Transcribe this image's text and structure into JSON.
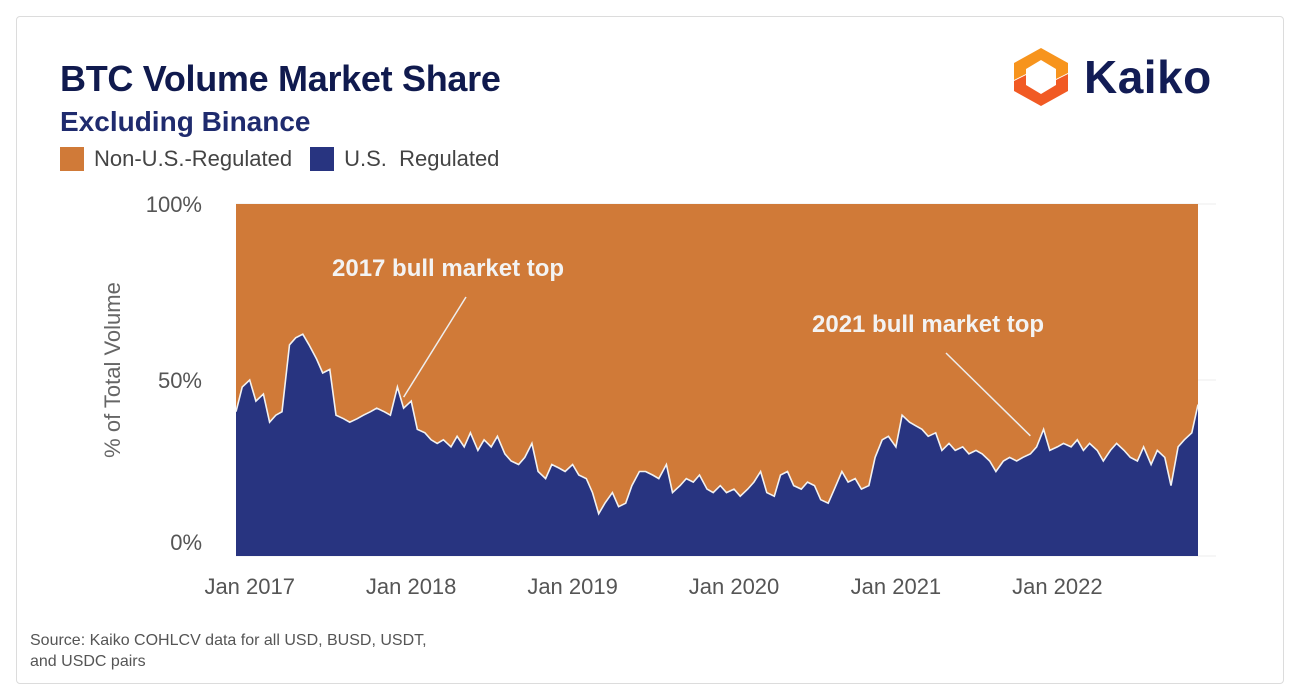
{
  "header": {
    "title": "BTC Volume Market Share",
    "subtitle": "Excluding Binance"
  },
  "brand": {
    "logo_text": "Kaiko",
    "logo_colors": [
      "#f7941d",
      "#f15a24"
    ]
  },
  "footer": {
    "source": "Source: Kaiko COHLCV data for all USD, BUSD, USDT, and USDC pairs"
  },
  "colors": {
    "non_us": "#d07a38",
    "us": "#283480"
  },
  "chart_data": {
    "type": "area",
    "stacked": true,
    "title": "BTC Volume Market Share",
    "subtitle": "Excluding Binance",
    "ylabel": "% of Total Volume",
    "xlabel": "",
    "ylim": [
      0,
      100
    ],
    "yticks": [
      "0%",
      "50%",
      "100%"
    ],
    "xticks": [
      "Jan 2017",
      "Jan 2018",
      "Jan 2019",
      "Jan 2020",
      "Jan 2021",
      "Jan 2022"
    ],
    "xrange": [
      "2016-12-01",
      "2022-11-15"
    ],
    "legend": {
      "placement": "top-left",
      "entries": [
        "Non-U.S.-Regulated",
        "U.S.  Regulated"
      ]
    },
    "grid": true,
    "series": [
      {
        "name": "U.S.  Regulated",
        "color": "#283480",
        "points": [
          [
            "2016-12-01",
            41
          ],
          [
            "2016-12-15",
            48
          ],
          [
            "2017-01-01",
            50
          ],
          [
            "2017-01-15",
            44
          ],
          [
            "2017-02-01",
            46
          ],
          [
            "2017-02-15",
            38
          ],
          [
            "2017-03-01",
            40
          ],
          [
            "2017-03-15",
            41
          ],
          [
            "2017-04-01",
            60
          ],
          [
            "2017-04-15",
            62
          ],
          [
            "2017-05-01",
            63
          ],
          [
            "2017-05-15",
            60
          ],
          [
            "2017-06-01",
            56
          ],
          [
            "2017-06-15",
            52
          ],
          [
            "2017-07-01",
            53
          ],
          [
            "2017-07-15",
            40
          ],
          [
            "2017-08-01",
            39
          ],
          [
            "2017-08-15",
            38
          ],
          [
            "2017-09-01",
            39
          ],
          [
            "2017-09-15",
            40
          ],
          [
            "2017-10-01",
            41
          ],
          [
            "2017-10-15",
            42
          ],
          [
            "2017-11-01",
            41
          ],
          [
            "2017-11-15",
            40
          ],
          [
            "2017-12-01",
            48
          ],
          [
            "2017-12-15",
            42
          ],
          [
            "2018-01-01",
            44
          ],
          [
            "2018-01-15",
            36
          ],
          [
            "2018-02-01",
            35
          ],
          [
            "2018-02-15",
            33
          ],
          [
            "2018-03-01",
            32
          ],
          [
            "2018-03-15",
            33
          ],
          [
            "2018-04-01",
            31
          ],
          [
            "2018-04-15",
            34
          ],
          [
            "2018-05-01",
            31
          ],
          [
            "2018-05-15",
            35
          ],
          [
            "2018-06-01",
            30
          ],
          [
            "2018-06-15",
            33
          ],
          [
            "2018-07-01",
            31
          ],
          [
            "2018-07-15",
            34
          ],
          [
            "2018-08-01",
            29
          ],
          [
            "2018-08-15",
            27
          ],
          [
            "2018-09-01",
            26
          ],
          [
            "2018-09-15",
            28
          ],
          [
            "2018-10-01",
            32
          ],
          [
            "2018-10-15",
            24
          ],
          [
            "2018-11-01",
            22
          ],
          [
            "2018-11-15",
            26
          ],
          [
            "2018-12-01",
            25
          ],
          [
            "2018-12-15",
            24
          ],
          [
            "2019-01-01",
            26
          ],
          [
            "2019-01-15",
            23
          ],
          [
            "2019-02-01",
            22
          ],
          [
            "2019-02-15",
            18
          ],
          [
            "2019-03-01",
            12
          ],
          [
            "2019-03-15",
            15
          ],
          [
            "2019-04-01",
            18
          ],
          [
            "2019-04-15",
            14
          ],
          [
            "2019-05-01",
            15
          ],
          [
            "2019-05-15",
            20
          ],
          [
            "2019-06-01",
            24
          ],
          [
            "2019-06-15",
            24
          ],
          [
            "2019-07-01",
            23
          ],
          [
            "2019-07-15",
            22
          ],
          [
            "2019-08-01",
            26
          ],
          [
            "2019-08-15",
            18
          ],
          [
            "2019-09-01",
            20
          ],
          [
            "2019-09-15",
            22
          ],
          [
            "2019-10-01",
            21
          ],
          [
            "2019-10-15",
            23
          ],
          [
            "2019-11-01",
            19
          ],
          [
            "2019-11-15",
            18
          ],
          [
            "2019-12-01",
            20
          ],
          [
            "2019-12-15",
            18
          ],
          [
            "2020-01-01",
            19
          ],
          [
            "2020-01-15",
            17
          ],
          [
            "2020-02-01",
            19
          ],
          [
            "2020-02-15",
            21
          ],
          [
            "2020-03-01",
            24
          ],
          [
            "2020-03-15",
            18
          ],
          [
            "2020-04-01",
            17
          ],
          [
            "2020-04-15",
            23
          ],
          [
            "2020-05-01",
            24
          ],
          [
            "2020-05-15",
            20
          ],
          [
            "2020-06-01",
            19
          ],
          [
            "2020-06-15",
            21
          ],
          [
            "2020-07-01",
            20
          ],
          [
            "2020-07-15",
            16
          ],
          [
            "2020-08-01",
            15
          ],
          [
            "2020-08-15",
            19
          ],
          [
            "2020-09-01",
            24
          ],
          [
            "2020-09-15",
            21
          ],
          [
            "2020-10-01",
            22
          ],
          [
            "2020-10-15",
            19
          ],
          [
            "2020-11-01",
            20
          ],
          [
            "2020-11-15",
            28
          ],
          [
            "2020-12-01",
            33
          ],
          [
            "2020-12-15",
            34
          ],
          [
            "2021-01-01",
            31
          ],
          [
            "2021-01-15",
            40
          ],
          [
            "2021-02-01",
            38
          ],
          [
            "2021-02-15",
            37
          ],
          [
            "2021-03-01",
            36
          ],
          [
            "2021-03-15",
            34
          ],
          [
            "2021-04-01",
            35
          ],
          [
            "2021-04-15",
            30
          ],
          [
            "2021-05-01",
            32
          ],
          [
            "2021-05-15",
            30
          ],
          [
            "2021-06-01",
            31
          ],
          [
            "2021-06-15",
            29
          ],
          [
            "2021-07-01",
            30
          ],
          [
            "2021-07-15",
            29
          ],
          [
            "2021-08-01",
            27
          ],
          [
            "2021-08-15",
            24
          ],
          [
            "2021-09-01",
            27
          ],
          [
            "2021-09-15",
            28
          ],
          [
            "2021-10-01",
            27
          ],
          [
            "2021-10-15",
            28
          ],
          [
            "2021-11-01",
            29
          ],
          [
            "2021-11-15",
            31
          ],
          [
            "2021-12-01",
            36
          ],
          [
            "2021-12-15",
            30
          ],
          [
            "2022-01-01",
            31
          ],
          [
            "2022-01-15",
            32
          ],
          [
            "2022-02-01",
            31
          ],
          [
            "2022-02-15",
            33
          ],
          [
            "2022-03-01",
            30
          ],
          [
            "2022-03-15",
            32
          ],
          [
            "2022-04-01",
            30
          ],
          [
            "2022-04-15",
            27
          ],
          [
            "2022-05-01",
            30
          ],
          [
            "2022-05-15",
            32
          ],
          [
            "2022-06-01",
            30
          ],
          [
            "2022-06-15",
            28
          ],
          [
            "2022-07-01",
            27
          ],
          [
            "2022-07-15",
            31
          ],
          [
            "2022-08-01",
            26
          ],
          [
            "2022-08-15",
            30
          ],
          [
            "2022-09-01",
            28
          ],
          [
            "2022-09-15",
            20
          ],
          [
            "2022-10-01",
            31
          ],
          [
            "2022-10-15",
            33
          ],
          [
            "2022-11-01",
            35
          ],
          [
            "2022-11-15",
            43
          ]
        ]
      },
      {
        "name": "Non-U.S.-Regulated",
        "color": "#d07a38",
        "note_stack": "fills remainder to 100%"
      }
    ],
    "annotations": [
      {
        "text": "2017 bull market top",
        "point": [
          "2017-12-15",
          44
        ]
      },
      {
        "text": "2021 bull market top",
        "point": [
          "2021-11-01",
          33
        ]
      }
    ]
  }
}
